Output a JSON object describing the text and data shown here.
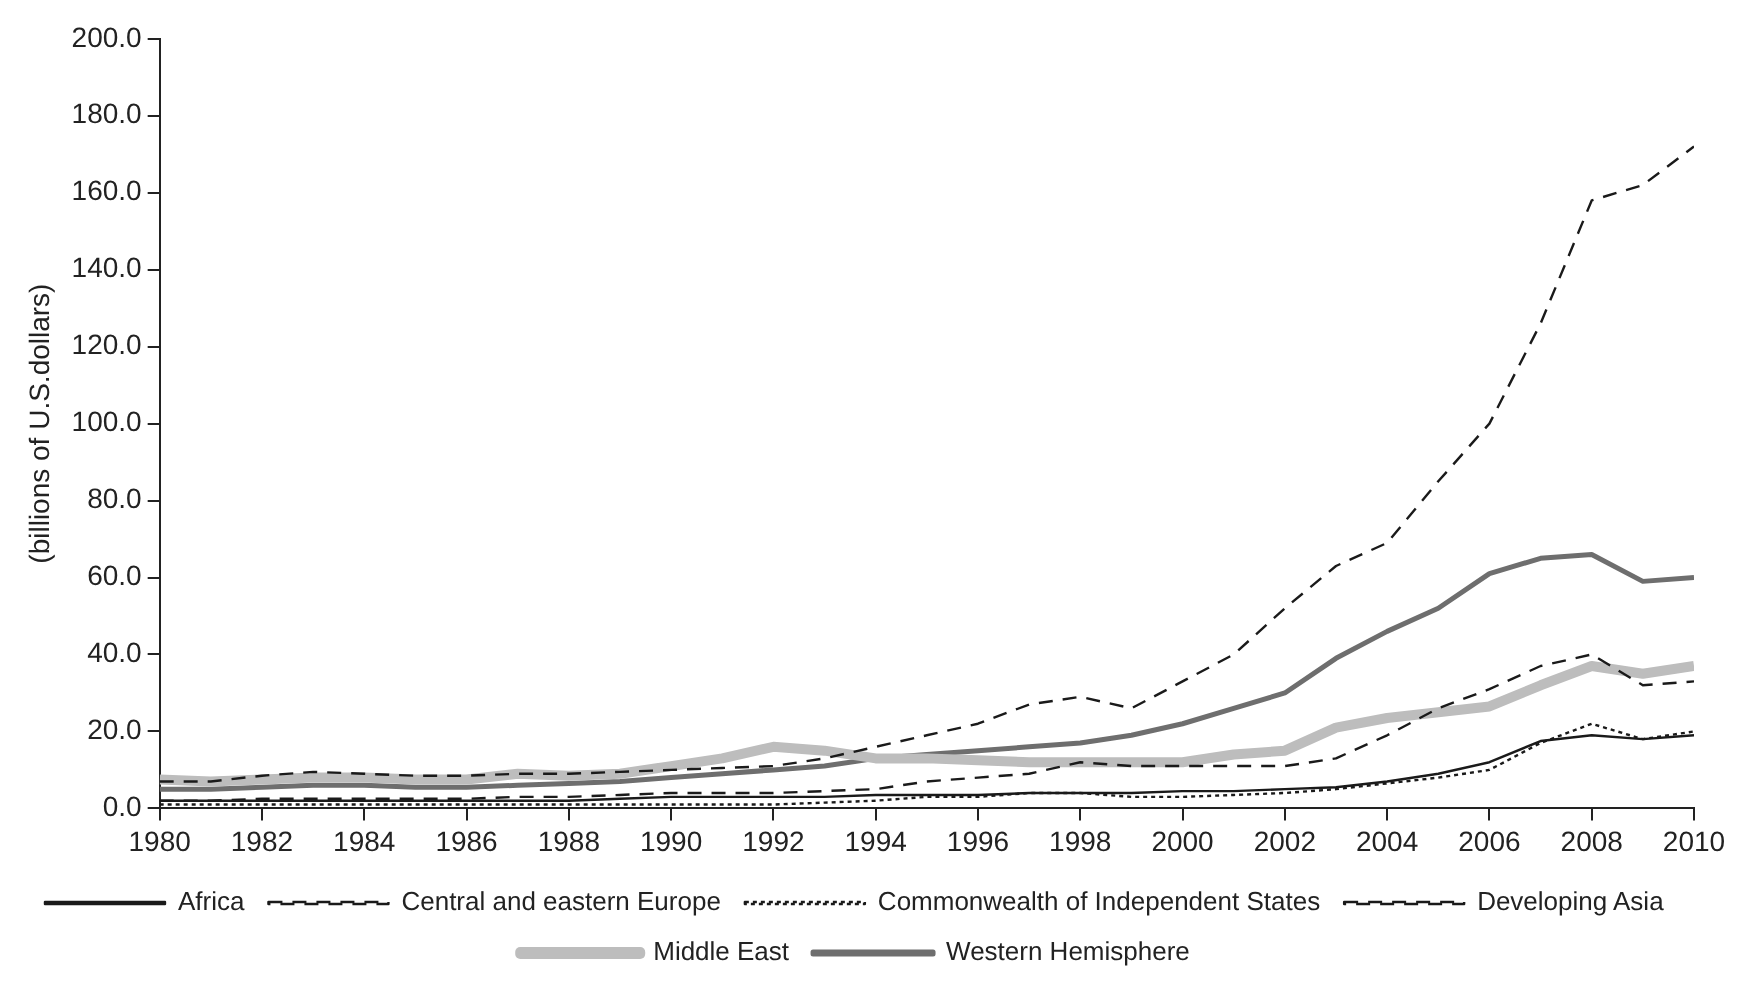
{
  "chart_data": {
    "type": "line",
    "ylabel": "(billions of U.S.dollars)",
    "x": [
      1980,
      1981,
      1982,
      1983,
      1984,
      1985,
      1986,
      1987,
      1988,
      1989,
      1990,
      1991,
      1992,
      1993,
      1994,
      1995,
      1996,
      1997,
      1998,
      1999,
      2000,
      2001,
      2002,
      2003,
      2004,
      2005,
      2006,
      2007,
      2008,
      2009,
      2010
    ],
    "series": [
      {
        "name": "Africa",
        "color": "#1a1a1a",
        "line_style": "solid",
        "values": [
          2,
          2,
          2,
          2,
          2,
          2,
          2,
          2,
          2,
          2.5,
          3,
          3,
          3,
          3,
          3.5,
          3.5,
          3.5,
          4,
          4,
          4,
          4.5,
          4.5,
          5,
          5.5,
          7,
          9,
          12,
          17.5,
          19,
          18,
          19
        ]
      },
      {
        "name": "Central and eastern Europe",
        "color": "#1a1a1a",
        "line_style": "dashed",
        "values": [
          2,
          2,
          2.5,
          2.5,
          2.5,
          2.5,
          2.5,
          3,
          3,
          3.5,
          4,
          4,
          4,
          4.5,
          5,
          7,
          8,
          9,
          12,
          11,
          11,
          11,
          11,
          13,
          19,
          26,
          31,
          37,
          40,
          32,
          33
        ]
      },
      {
        "name": "Commonwealth of Independent States",
        "color": "#1a1a1a",
        "line_style": "dotted",
        "values": [
          1,
          1,
          1,
          1,
          1,
          1,
          1,
          1,
          1,
          1,
          1,
          1,
          1,
          1.5,
          2,
          3,
          3,
          4,
          4,
          3,
          3,
          3.5,
          4,
          5,
          6.5,
          8,
          10,
          17,
          22,
          18,
          20
        ]
      },
      {
        "name": "Developing Asia",
        "color": "#1a1a1a",
        "line_style": "dashed",
        "values": [
          7,
          7,
          8.5,
          9.5,
          9,
          8.5,
          8.5,
          9,
          9,
          9.5,
          10,
          10.5,
          11,
          13,
          16,
          19,
          22,
          27,
          29,
          26,
          33,
          40,
          52,
          63,
          69,
          85,
          100,
          126,
          158,
          162,
          172
        ]
      },
      {
        "name": "Middle East",
        "color": "#bdbdbd",
        "line_style": "solid",
        "values": [
          7.5,
          7,
          7.5,
          8,
          8,
          7.5,
          7.5,
          9,
          8.5,
          9,
          11,
          13,
          16,
          15,
          13,
          13,
          12.5,
          12,
          12,
          12,
          12,
          14,
          15,
          21,
          23.5,
          25,
          26.5,
          32,
          37,
          35,
          37
        ]
      },
      {
        "name": "Western Hemisphere",
        "color": "#6e6e6e",
        "line_style": "solid",
        "values": [
          5,
          5,
          5.5,
          6,
          6,
          5.5,
          5.5,
          6,
          6.5,
          7,
          8,
          9,
          10,
          11,
          13,
          14,
          15,
          16,
          17,
          19,
          22,
          26,
          30,
          39,
          46,
          52,
          61,
          65,
          66,
          59,
          60
        ]
      }
    ],
    "xlim": [
      1980,
      2010
    ],
    "xticks": [
      1980,
      1982,
      1984,
      1986,
      1988,
      1990,
      1992,
      1994,
      1996,
      1998,
      2000,
      2002,
      2004,
      2006,
      2008,
      2010
    ],
    "ylim": [
      0,
      200
    ],
    "yticks": [
      {
        "value": 0,
        "label": "0.0"
      },
      {
        "value": 20,
        "label": "20.0"
      },
      {
        "value": 40,
        "label": "40.0"
      },
      {
        "value": 60,
        "label": "60.0"
      },
      {
        "value": 80,
        "label": "80.0"
      },
      {
        "value": 100,
        "label": "100.0"
      },
      {
        "value": 120,
        "label": "120.0"
      },
      {
        "value": 140,
        "label": "140.0"
      },
      {
        "value": 160,
        "label": "160.0"
      },
      {
        "value": 180,
        "label": "180.0"
      },
      {
        "value": 200,
        "label": "200.0"
      }
    ],
    "grid": false,
    "legend": "bottom",
    "marker": "none"
  }
}
